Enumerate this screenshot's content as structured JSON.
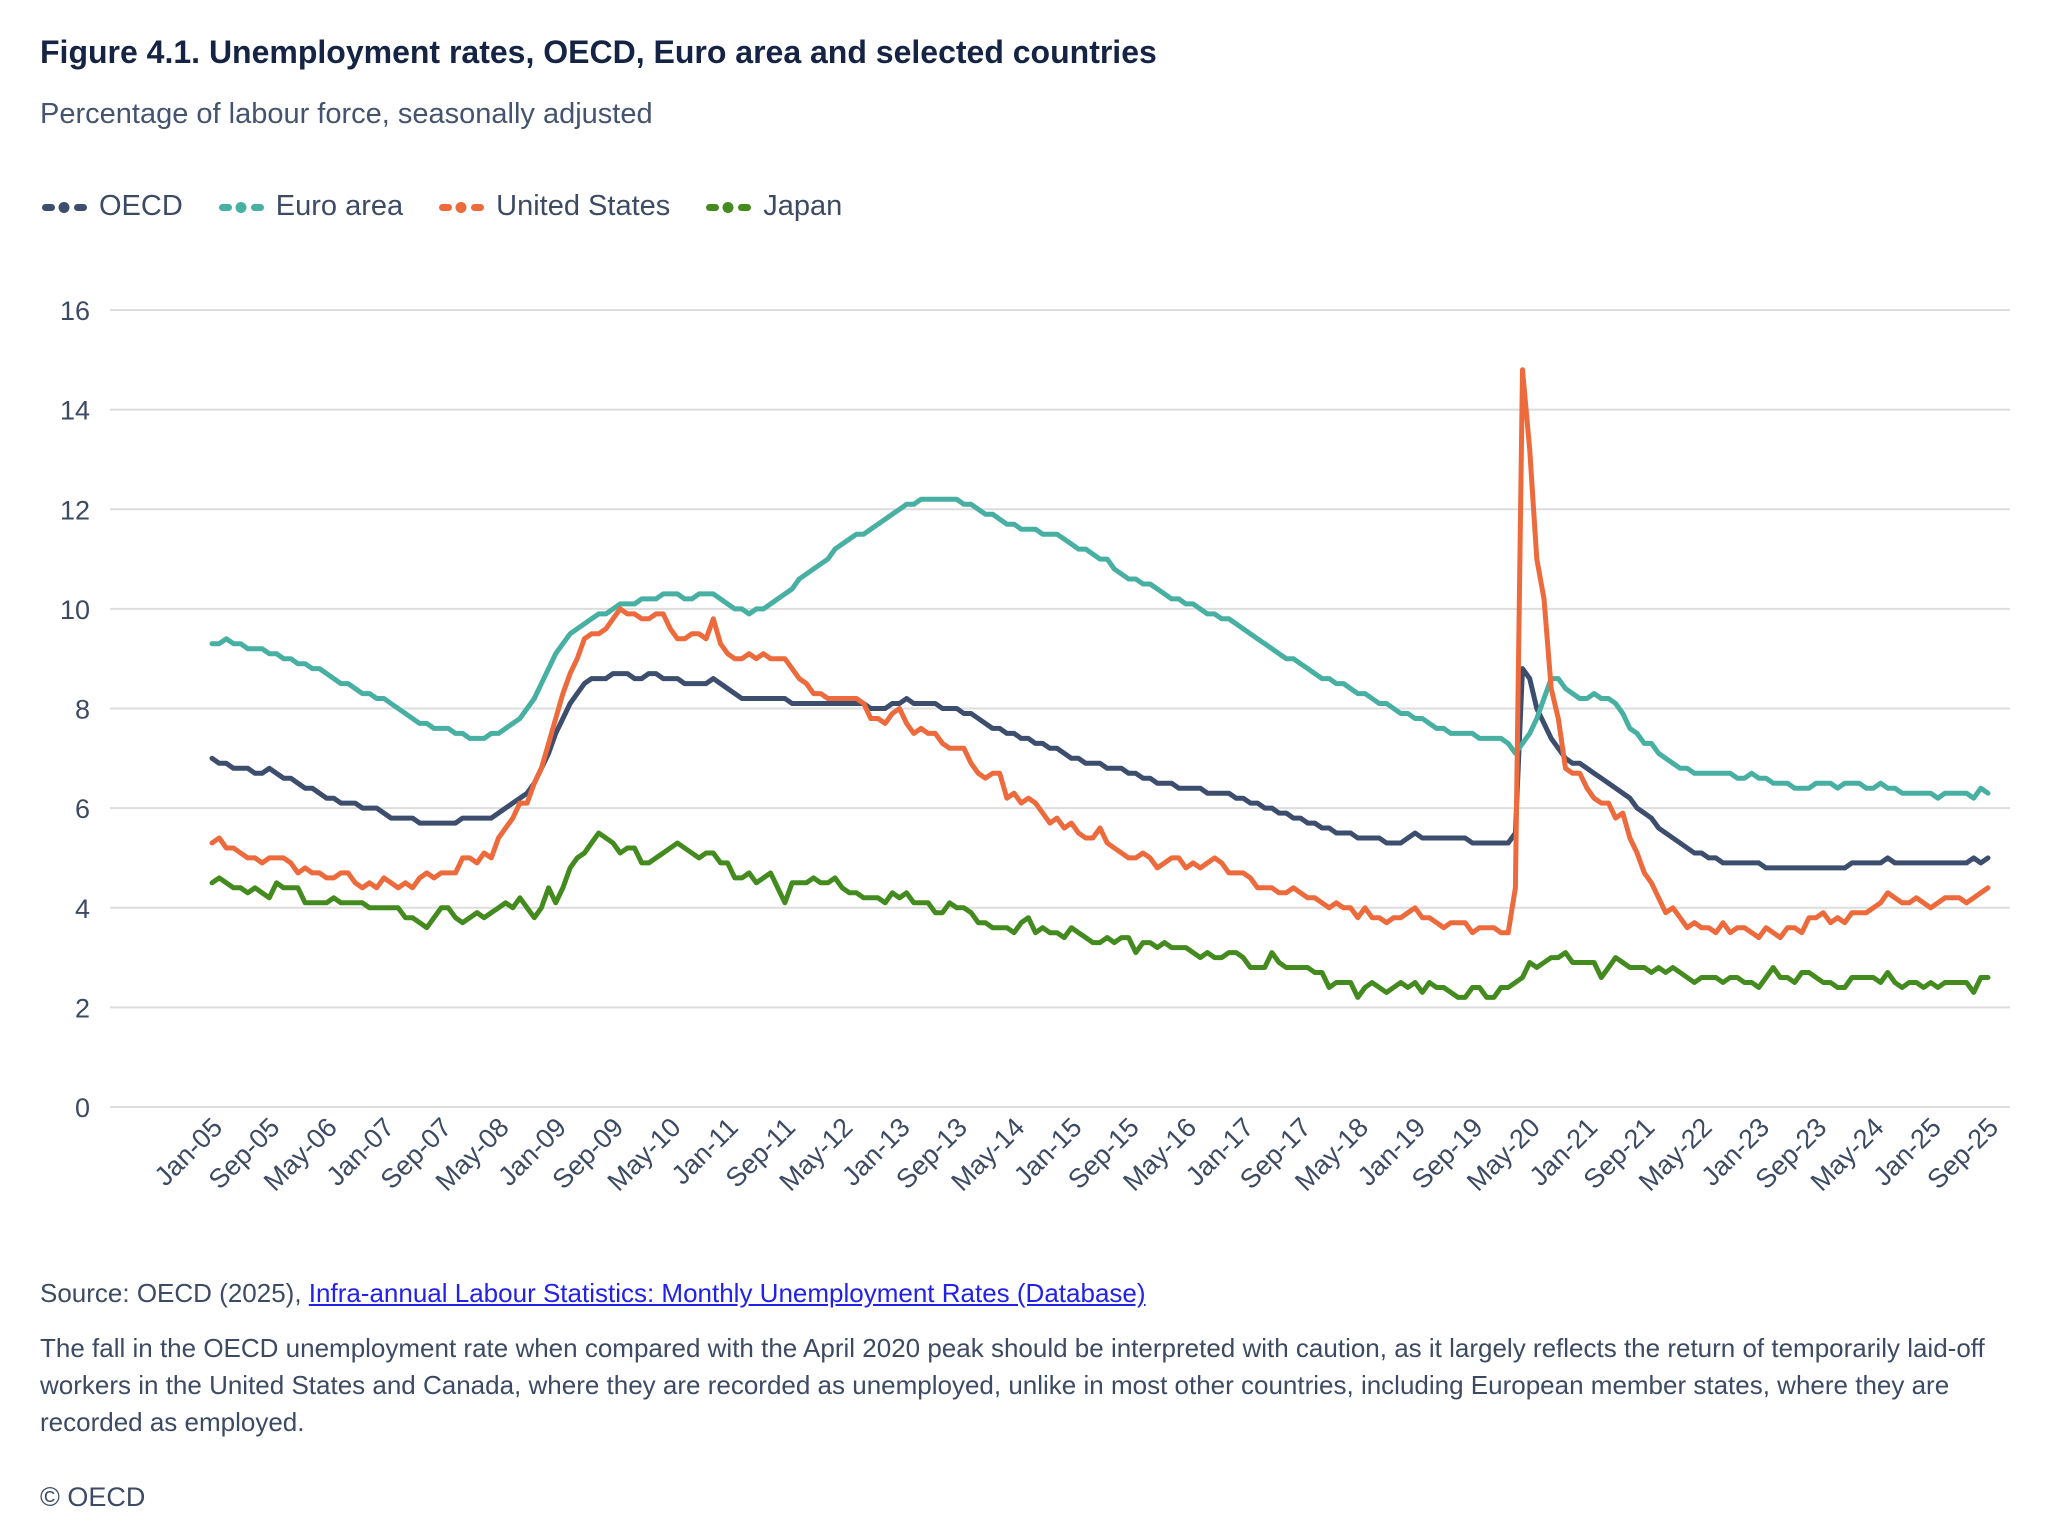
{
  "figure": {
    "title": "Figure 4.1. Unemployment rates, OECD, Euro area and selected countries",
    "subtitle": "Percentage of labour force, seasonally adjusted",
    "source_prefix": "Source: OECD (2025), ",
    "source_link": "Infra-annual Labour Statistics: Monthly Unemployment Rates (Database)",
    "footnote": "The fall in the OECD unemployment rate when compared with the April 2020 peak should be interpreted with caution, as it largely reflects the return of temporarily laid-off workers in the United States and Canada, where they are recorded as unemployed, unlike in most other countries, including European member states, where they are recorded as employed.",
    "copyright": "© OECD"
  },
  "chart_data": {
    "type": "line",
    "x_frequency": "monthly",
    "x_start": "Jan-05",
    "x_end": "Sep-25",
    "x_tick_every_n_months": 8,
    "x_tick_labels": [
      "Jan-05",
      "Sep-05",
      "May-06",
      "Jan-07",
      "Sep-07",
      "May-08",
      "Jan-09",
      "Sep-09",
      "May-10",
      "Jan-11",
      "Sep-11",
      "May-12",
      "Jan-13",
      "Sep-13",
      "May-14",
      "Jan-15",
      "Sep-15",
      "May-16",
      "Jan-17",
      "Sep-17",
      "May-18",
      "Jan-19",
      "Sep-19",
      "May-20",
      "Jan-21",
      "Sep-21",
      "May-22",
      "Jan-23",
      "Sep-23",
      "May-24",
      "Jan-25",
      "Sep-25"
    ],
    "ylim": [
      0,
      16
    ],
    "y_ticks": [
      0,
      2,
      4,
      6,
      8,
      10,
      12,
      14,
      16
    ],
    "grid": "horizontal",
    "legend_position": "top-left",
    "gridline_color": "#dddddd",
    "axis_text_color": "#3c4a63",
    "series": [
      {
        "name": "OECD",
        "color": "#3d4d6e",
        "values": [
          7.0,
          6.9,
          6.9,
          6.8,
          6.8,
          6.8,
          6.7,
          6.7,
          6.8,
          6.7,
          6.6,
          6.6,
          6.5,
          6.4,
          6.4,
          6.3,
          6.2,
          6.2,
          6.1,
          6.1,
          6.1,
          6.0,
          6.0,
          6.0,
          5.9,
          5.8,
          5.8,
          5.8,
          5.8,
          5.7,
          5.7,
          5.7,
          5.7,
          5.7,
          5.7,
          5.8,
          5.8,
          5.8,
          5.8,
          5.8,
          5.9,
          6.0,
          6.1,
          6.2,
          6.3,
          6.5,
          6.8,
          7.1,
          7.5,
          7.8,
          8.1,
          8.3,
          8.5,
          8.6,
          8.6,
          8.6,
          8.7,
          8.7,
          8.7,
          8.6,
          8.6,
          8.7,
          8.7,
          8.6,
          8.6,
          8.6,
          8.5,
          8.5,
          8.5,
          8.5,
          8.6,
          8.5,
          8.4,
          8.3,
          8.2,
          8.2,
          8.2,
          8.2,
          8.2,
          8.2,
          8.2,
          8.1,
          8.1,
          8.1,
          8.1,
          8.1,
          8.1,
          8.1,
          8.1,
          8.1,
          8.1,
          8.1,
          8.0,
          8.0,
          8.0,
          8.1,
          8.1,
          8.2,
          8.1,
          8.1,
          8.1,
          8.1,
          8.0,
          8.0,
          8.0,
          7.9,
          7.9,
          7.8,
          7.7,
          7.6,
          7.6,
          7.5,
          7.5,
          7.4,
          7.4,
          7.3,
          7.3,
          7.2,
          7.2,
          7.1,
          7.0,
          7.0,
          6.9,
          6.9,
          6.9,
          6.8,
          6.8,
          6.8,
          6.7,
          6.7,
          6.6,
          6.6,
          6.5,
          6.5,
          6.5,
          6.4,
          6.4,
          6.4,
          6.4,
          6.3,
          6.3,
          6.3,
          6.3,
          6.2,
          6.2,
          6.1,
          6.1,
          6.0,
          6.0,
          5.9,
          5.9,
          5.8,
          5.8,
          5.7,
          5.7,
          5.6,
          5.6,
          5.5,
          5.5,
          5.5,
          5.4,
          5.4,
          5.4,
          5.4,
          5.3,
          5.3,
          5.3,
          5.4,
          5.5,
          5.4,
          5.4,
          5.4,
          5.4,
          5.4,
          5.4,
          5.4,
          5.3,
          5.3,
          5.3,
          5.3,
          5.3,
          5.3,
          5.5,
          8.8,
          8.6,
          8.0,
          7.7,
          7.4,
          7.2,
          7.0,
          6.9,
          6.9,
          6.8,
          6.7,
          6.6,
          6.5,
          6.4,
          6.3,
          6.2,
          6.0,
          5.9,
          5.8,
          5.6,
          5.5,
          5.4,
          5.3,
          5.2,
          5.1,
          5.1,
          5.0,
          5.0,
          4.9,
          4.9,
          4.9,
          4.9,
          4.9,
          4.9,
          4.8,
          4.8,
          4.8,
          4.8,
          4.8,
          4.8,
          4.8,
          4.8,
          4.8,
          4.8,
          4.8,
          4.8,
          4.9,
          4.9,
          4.9,
          4.9,
          4.9,
          5.0,
          4.9,
          4.9,
          4.9,
          4.9,
          4.9,
          4.9,
          4.9,
          4.9,
          4.9,
          4.9,
          4.9,
          5.0,
          4.9,
          5.0
        ]
      },
      {
        "name": "Euro area",
        "color": "#48b0a2",
        "values": [
          9.3,
          9.3,
          9.4,
          9.3,
          9.3,
          9.2,
          9.2,
          9.2,
          9.1,
          9.1,
          9.0,
          9.0,
          8.9,
          8.9,
          8.8,
          8.8,
          8.7,
          8.6,
          8.5,
          8.5,
          8.4,
          8.3,
          8.3,
          8.2,
          8.2,
          8.1,
          8.0,
          7.9,
          7.8,
          7.7,
          7.7,
          7.6,
          7.6,
          7.6,
          7.5,
          7.5,
          7.4,
          7.4,
          7.4,
          7.5,
          7.5,
          7.6,
          7.7,
          7.8,
          8.0,
          8.2,
          8.5,
          8.8,
          9.1,
          9.3,
          9.5,
          9.6,
          9.7,
          9.8,
          9.9,
          9.9,
          10.0,
          10.1,
          10.1,
          10.1,
          10.2,
          10.2,
          10.2,
          10.3,
          10.3,
          10.3,
          10.2,
          10.2,
          10.3,
          10.3,
          10.3,
          10.2,
          10.1,
          10.0,
          10.0,
          9.9,
          10.0,
          10.0,
          10.1,
          10.2,
          10.3,
          10.4,
          10.6,
          10.7,
          10.8,
          10.9,
          11.0,
          11.2,
          11.3,
          11.4,
          11.5,
          11.5,
          11.6,
          11.7,
          11.8,
          11.9,
          12.0,
          12.1,
          12.1,
          12.2,
          12.2,
          12.2,
          12.2,
          12.2,
          12.2,
          12.1,
          12.1,
          12.0,
          11.9,
          11.9,
          11.8,
          11.7,
          11.7,
          11.6,
          11.6,
          11.6,
          11.5,
          11.5,
          11.5,
          11.4,
          11.3,
          11.2,
          11.2,
          11.1,
          11.0,
          11.0,
          10.8,
          10.7,
          10.6,
          10.6,
          10.5,
          10.5,
          10.4,
          10.3,
          10.2,
          10.2,
          10.1,
          10.1,
          10.0,
          9.9,
          9.9,
          9.8,
          9.8,
          9.7,
          9.6,
          9.5,
          9.4,
          9.3,
          9.2,
          9.1,
          9.0,
          9.0,
          8.9,
          8.8,
          8.7,
          8.6,
          8.6,
          8.5,
          8.5,
          8.4,
          8.3,
          8.3,
          8.2,
          8.1,
          8.1,
          8.0,
          7.9,
          7.9,
          7.8,
          7.8,
          7.7,
          7.6,
          7.6,
          7.5,
          7.5,
          7.5,
          7.5,
          7.4,
          7.4,
          7.4,
          7.4,
          7.3,
          7.1,
          7.3,
          7.5,
          7.8,
          8.2,
          8.6,
          8.6,
          8.4,
          8.3,
          8.2,
          8.2,
          8.3,
          8.2,
          8.2,
          8.1,
          7.9,
          7.6,
          7.5,
          7.3,
          7.3,
          7.1,
          7.0,
          6.9,
          6.8,
          6.8,
          6.7,
          6.7,
          6.7,
          6.7,
          6.7,
          6.7,
          6.6,
          6.6,
          6.7,
          6.6,
          6.6,
          6.5,
          6.5,
          6.5,
          6.4,
          6.4,
          6.4,
          6.5,
          6.5,
          6.5,
          6.4,
          6.5,
          6.5,
          6.5,
          6.4,
          6.4,
          6.5,
          6.4,
          6.4,
          6.3,
          6.3,
          6.3,
          6.3,
          6.3,
          6.2,
          6.3,
          6.3,
          6.3,
          6.3,
          6.2,
          6.4,
          6.3
        ]
      },
      {
        "name": "United States",
        "color": "#ed6a3c",
        "values": [
          5.3,
          5.4,
          5.2,
          5.2,
          5.1,
          5.0,
          5.0,
          4.9,
          5.0,
          5.0,
          5.0,
          4.9,
          4.7,
          4.8,
          4.7,
          4.7,
          4.6,
          4.6,
          4.7,
          4.7,
          4.5,
          4.4,
          4.5,
          4.4,
          4.6,
          4.5,
          4.4,
          4.5,
          4.4,
          4.6,
          4.7,
          4.6,
          4.7,
          4.7,
          4.7,
          5.0,
          5.0,
          4.9,
          5.1,
          5.0,
          5.4,
          5.6,
          5.8,
          6.1,
          6.1,
          6.5,
          6.8,
          7.3,
          7.8,
          8.3,
          8.7,
          9.0,
          9.4,
          9.5,
          9.5,
          9.6,
          9.8,
          10.0,
          9.9,
          9.9,
          9.8,
          9.8,
          9.9,
          9.9,
          9.6,
          9.4,
          9.4,
          9.5,
          9.5,
          9.4,
          9.8,
          9.3,
          9.1,
          9.0,
          9.0,
          9.1,
          9.0,
          9.1,
          9.0,
          9.0,
          9.0,
          8.8,
          8.6,
          8.5,
          8.3,
          8.3,
          8.2,
          8.2,
          8.2,
          8.2,
          8.2,
          8.1,
          7.8,
          7.8,
          7.7,
          7.9,
          8.0,
          7.7,
          7.5,
          7.6,
          7.5,
          7.5,
          7.3,
          7.2,
          7.2,
          7.2,
          6.9,
          6.7,
          6.6,
          6.7,
          6.7,
          6.2,
          6.3,
          6.1,
          6.2,
          6.1,
          5.9,
          5.7,
          5.8,
          5.6,
          5.7,
          5.5,
          5.4,
          5.4,
          5.6,
          5.3,
          5.2,
          5.1,
          5.0,
          5.0,
          5.1,
          5.0,
          4.8,
          4.9,
          5.0,
          5.0,
          4.8,
          4.9,
          4.8,
          4.9,
          5.0,
          4.9,
          4.7,
          4.7,
          4.7,
          4.6,
          4.4,
          4.4,
          4.4,
          4.3,
          4.3,
          4.4,
          4.3,
          4.2,
          4.2,
          4.1,
          4.0,
          4.1,
          4.0,
          4.0,
          3.8,
          4.0,
          3.8,
          3.8,
          3.7,
          3.8,
          3.8,
          3.9,
          4.0,
          3.8,
          3.8,
          3.7,
          3.6,
          3.7,
          3.7,
          3.7,
          3.5,
          3.6,
          3.6,
          3.6,
          3.5,
          3.5,
          4.4,
          14.8,
          13.2,
          11.0,
          10.2,
          8.4,
          7.8,
          6.8,
          6.7,
          6.7,
          6.4,
          6.2,
          6.1,
          6.1,
          5.8,
          5.9,
          5.4,
          5.1,
          4.7,
          4.5,
          4.2,
          3.9,
          4.0,
          3.8,
          3.6,
          3.7,
          3.6,
          3.6,
          3.5,
          3.7,
          3.5,
          3.6,
          3.6,
          3.5,
          3.4,
          3.6,
          3.5,
          3.4,
          3.6,
          3.6,
          3.5,
          3.8,
          3.8,
          3.9,
          3.7,
          3.8,
          3.7,
          3.9,
          3.9,
          3.9,
          4.0,
          4.1,
          4.3,
          4.2,
          4.1,
          4.1,
          4.2,
          4.1,
          4.0,
          4.1,
          4.2,
          4.2,
          4.2,
          4.1,
          4.2,
          4.3,
          4.4
        ]
      },
      {
        "name": "Japan",
        "color": "#448b1f",
        "values": [
          4.5,
          4.6,
          4.5,
          4.4,
          4.4,
          4.3,
          4.4,
          4.3,
          4.2,
          4.5,
          4.4,
          4.4,
          4.4,
          4.1,
          4.1,
          4.1,
          4.1,
          4.2,
          4.1,
          4.1,
          4.1,
          4.1,
          4.0,
          4.0,
          4.0,
          4.0,
          4.0,
          3.8,
          3.8,
          3.7,
          3.6,
          3.8,
          4.0,
          4.0,
          3.8,
          3.7,
          3.8,
          3.9,
          3.8,
          3.9,
          4.0,
          4.1,
          4.0,
          4.2,
          4.0,
          3.8,
          4.0,
          4.4,
          4.1,
          4.4,
          4.8,
          5.0,
          5.1,
          5.3,
          5.5,
          5.4,
          5.3,
          5.1,
          5.2,
          5.2,
          4.9,
          4.9,
          5.0,
          5.1,
          5.2,
          5.3,
          5.2,
          5.1,
          5.0,
          5.1,
          5.1,
          4.9,
          4.9,
          4.6,
          4.6,
          4.7,
          4.5,
          4.6,
          4.7,
          4.4,
          4.1,
          4.5,
          4.5,
          4.5,
          4.6,
          4.5,
          4.5,
          4.6,
          4.4,
          4.3,
          4.3,
          4.2,
          4.2,
          4.2,
          4.1,
          4.3,
          4.2,
          4.3,
          4.1,
          4.1,
          4.1,
          3.9,
          3.9,
          4.1,
          4.0,
          4.0,
          3.9,
          3.7,
          3.7,
          3.6,
          3.6,
          3.6,
          3.5,
          3.7,
          3.8,
          3.5,
          3.6,
          3.5,
          3.5,
          3.4,
          3.6,
          3.5,
          3.4,
          3.3,
          3.3,
          3.4,
          3.3,
          3.4,
          3.4,
          3.1,
          3.3,
          3.3,
          3.2,
          3.3,
          3.2,
          3.2,
          3.2,
          3.1,
          3.0,
          3.1,
          3.0,
          3.0,
          3.1,
          3.1,
          3.0,
          2.8,
          2.8,
          2.8,
          3.1,
          2.9,
          2.8,
          2.8,
          2.8,
          2.8,
          2.7,
          2.7,
          2.4,
          2.5,
          2.5,
          2.5,
          2.2,
          2.4,
          2.5,
          2.4,
          2.3,
          2.4,
          2.5,
          2.4,
          2.5,
          2.3,
          2.5,
          2.4,
          2.4,
          2.3,
          2.2,
          2.2,
          2.4,
          2.4,
          2.2,
          2.2,
          2.4,
          2.4,
          2.5,
          2.6,
          2.9,
          2.8,
          2.9,
          3.0,
          3.0,
          3.1,
          2.9,
          2.9,
          2.9,
          2.9,
          2.6,
          2.8,
          3.0,
          2.9,
          2.8,
          2.8,
          2.8,
          2.7,
          2.8,
          2.7,
          2.8,
          2.7,
          2.6,
          2.5,
          2.6,
          2.6,
          2.6,
          2.5,
          2.6,
          2.6,
          2.5,
          2.5,
          2.4,
          2.6,
          2.8,
          2.6,
          2.6,
          2.5,
          2.7,
          2.7,
          2.6,
          2.5,
          2.5,
          2.4,
          2.4,
          2.6,
          2.6,
          2.6,
          2.6,
          2.5,
          2.7,
          2.5,
          2.4,
          2.5,
          2.5,
          2.4,
          2.5,
          2.4,
          2.5,
          2.5,
          2.5,
          2.5,
          2.3,
          2.6,
          2.6
        ]
      }
    ]
  }
}
